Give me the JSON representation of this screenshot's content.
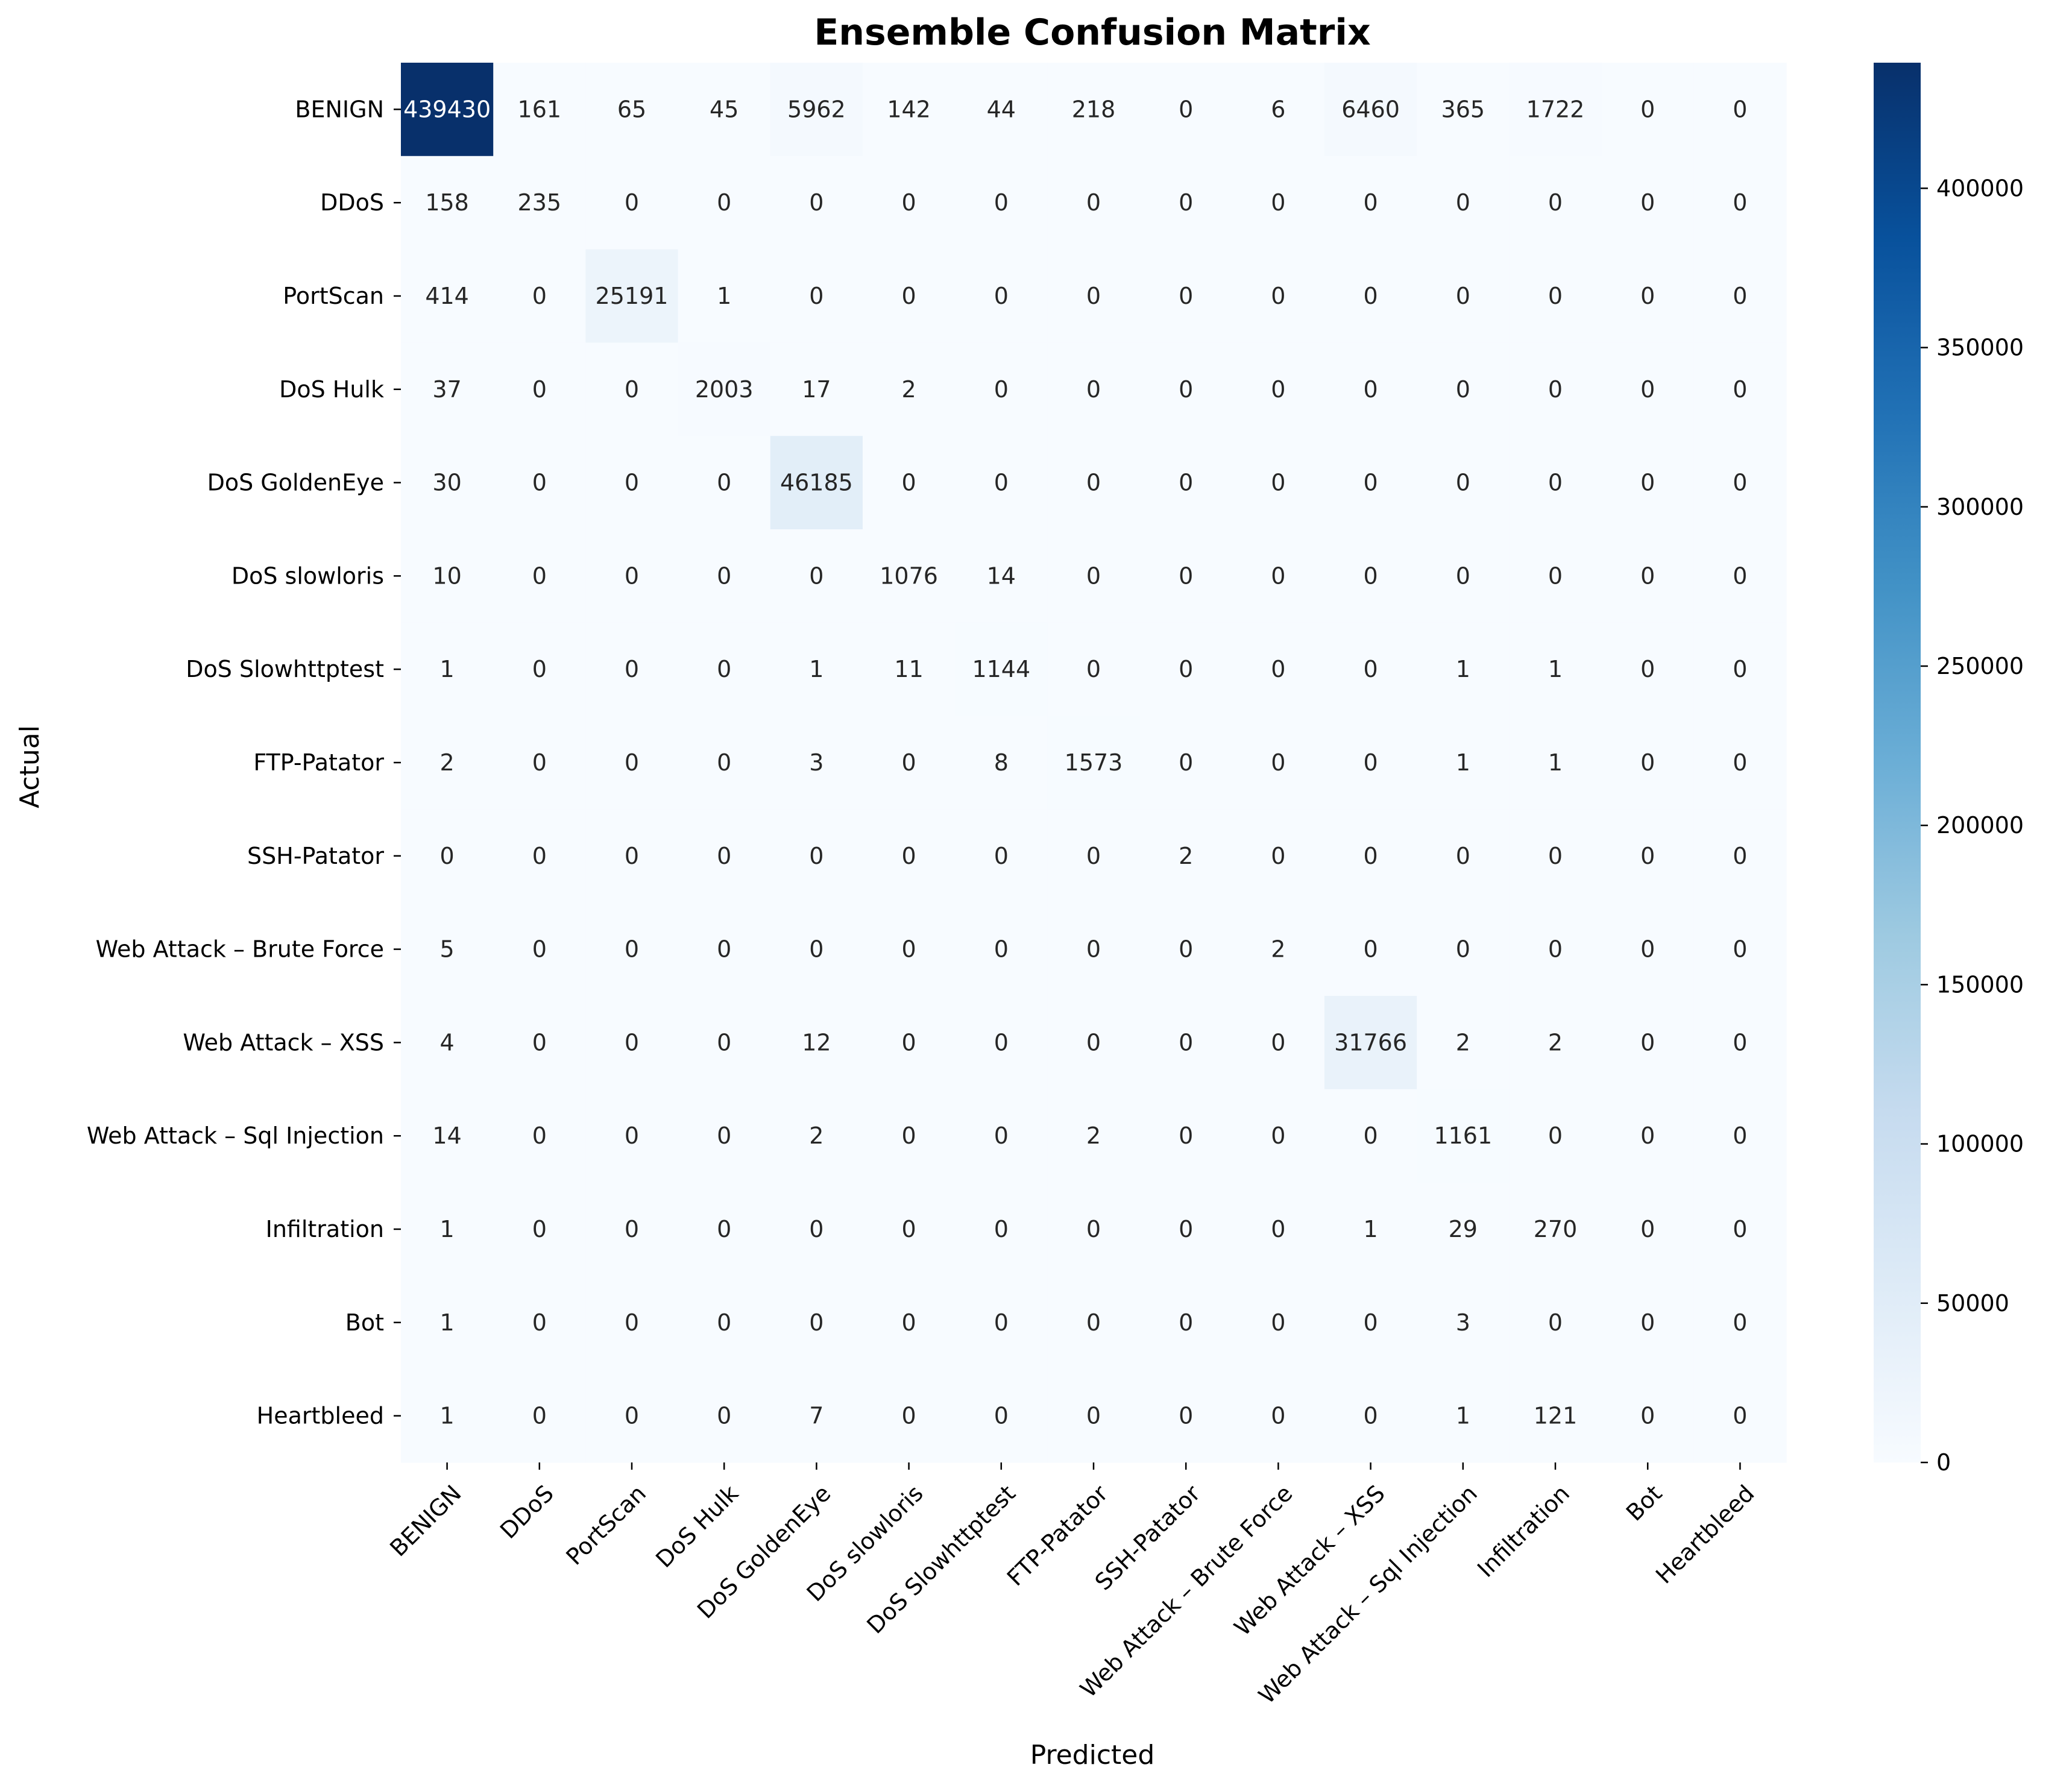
{
  "chart_data": {
    "type": "heatmap",
    "title": "Ensemble Confusion Matrix",
    "xlabel": "Predicted",
    "ylabel": "Actual",
    "row_labels": [
      "BENIGN",
      "DDoS",
      "PortScan",
      "DoS Hulk",
      "DoS GoldenEye",
      "DoS slowloris",
      "DoS Slowhttptest",
      "FTP-Patator",
      "SSH-Patator",
      "Web Attack – Brute Force",
      "Web Attack – XSS",
      "Web Attack – Sql Injection",
      "Infiltration",
      "Bot",
      "Heartbleed"
    ],
    "col_labels": [
      "BENIGN",
      "DDoS",
      "PortScan",
      "DoS Hulk",
      "DoS GoldenEye",
      "DoS slowloris",
      "DoS Slowhttptest",
      "FTP-Patator",
      "SSH-Patator",
      "Web Attack – Brute Force",
      "Web Attack – XSS",
      "Web Attack – Sql Injection",
      "Infiltration",
      "Bot",
      "Heartbleed"
    ],
    "matrix": [
      [
        439430,
        161,
        65,
        45,
        5962,
        142,
        44,
        218,
        0,
        6,
        6460,
        365,
        1722,
        0,
        0
      ],
      [
        158,
        235,
        0,
        0,
        0,
        0,
        0,
        0,
        0,
        0,
        0,
        0,
        0,
        0,
        0
      ],
      [
        414,
        0,
        25191,
        1,
        0,
        0,
        0,
        0,
        0,
        0,
        0,
        0,
        0,
        0,
        0
      ],
      [
        37,
        0,
        0,
        2003,
        17,
        2,
        0,
        0,
        0,
        0,
        0,
        0,
        0,
        0,
        0
      ],
      [
        30,
        0,
        0,
        0,
        46185,
        0,
        0,
        0,
        0,
        0,
        0,
        0,
        0,
        0,
        0
      ],
      [
        10,
        0,
        0,
        0,
        0,
        1076,
        14,
        0,
        0,
        0,
        0,
        0,
        0,
        0,
        0
      ],
      [
        1,
        0,
        0,
        0,
        1,
        11,
        1144,
        0,
        0,
        0,
        0,
        1,
        1,
        0,
        0
      ],
      [
        2,
        0,
        0,
        0,
        3,
        0,
        8,
        1573,
        0,
        0,
        0,
        1,
        1,
        0,
        0
      ],
      [
        0,
        0,
        0,
        0,
        0,
        0,
        0,
        0,
        2,
        0,
        0,
        0,
        0,
        0,
        0
      ],
      [
        5,
        0,
        0,
        0,
        0,
        0,
        0,
        0,
        0,
        2,
        0,
        0,
        0,
        0,
        0
      ],
      [
        4,
        0,
        0,
        0,
        12,
        0,
        0,
        0,
        0,
        0,
        31766,
        2,
        2,
        0,
        0
      ],
      [
        14,
        0,
        0,
        0,
        2,
        0,
        0,
        2,
        0,
        0,
        0,
        1161,
        0,
        0,
        0
      ],
      [
        1,
        0,
        0,
        0,
        0,
        0,
        0,
        0,
        0,
        0,
        1,
        29,
        270,
        0,
        0
      ],
      [
        1,
        0,
        0,
        0,
        0,
        0,
        0,
        0,
        0,
        0,
        0,
        3,
        0,
        0,
        0
      ],
      [
        1,
        0,
        0,
        0,
        7,
        0,
        0,
        0,
        0,
        0,
        0,
        1,
        121,
        0,
        0
      ]
    ],
    "colorbar": {
      "colormap": "Blues",
      "range": [
        0,
        439430
      ],
      "ticks": [
        0,
        50000,
        100000,
        150000,
        200000,
        250000,
        300000,
        350000,
        400000
      ]
    },
    "colors": {
      "low": "#f7fbff",
      "high": "#08306b",
      "text_light": "#ffffff",
      "text_dark": "#262626"
    }
  }
}
